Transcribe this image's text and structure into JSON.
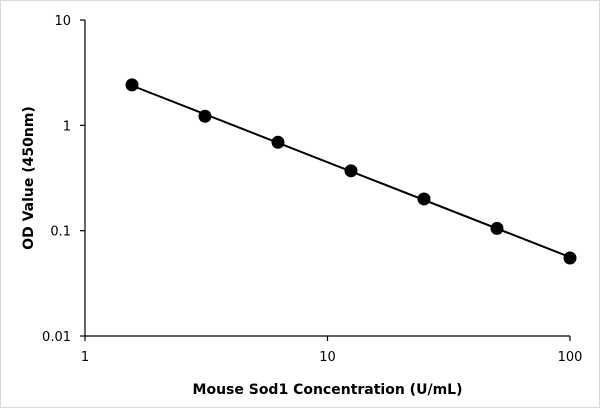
{
  "chart_data": {
    "type": "scatter",
    "title": "",
    "xlabel": "Mouse Sod1 Concentration (U/mL)",
    "ylabel": "OD Value (450nm)",
    "x_scale": "log",
    "y_scale": "log",
    "xlim": [
      1,
      100
    ],
    "ylim": [
      0.01,
      10
    ],
    "x_ticks": [
      1,
      10,
      100
    ],
    "x_tick_labels": [
      "1",
      "10",
      "100"
    ],
    "y_ticks": [
      0.01,
      0.1,
      1,
      10
    ],
    "y_tick_labels": [
      "0.01",
      "0.1",
      "1",
      "10"
    ],
    "grid": false,
    "legend": "none",
    "series": [
      {
        "x": [
          1.5625,
          3.125,
          6.25,
          12.5,
          25,
          50,
          100
        ],
        "y": [
          2.42,
          1.22,
          0.69,
          0.37,
          0.2,
          0.105,
          0.055
        ],
        "trendline": "power",
        "color": "#000000"
      }
    ]
  }
}
